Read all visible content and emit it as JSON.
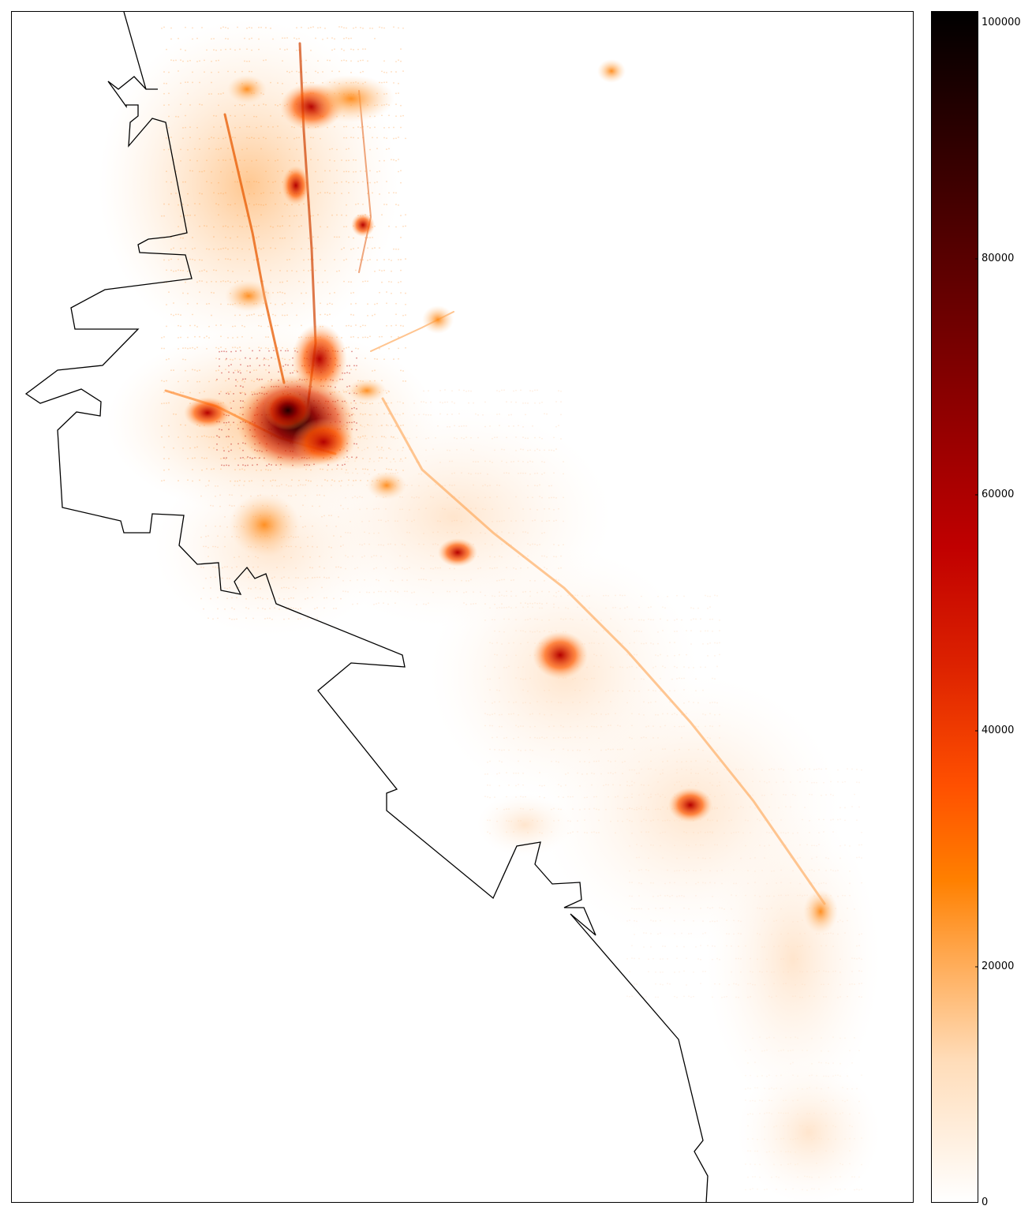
{
  "chart_data": {
    "type": "heatmap",
    "map_kind": "point-density scatter over coastline",
    "colormap": "gist_heat_r",
    "colors": {
      "low": "#ffffff",
      "mid_orange": "#ff7f00",
      "mid_red": "#c00000",
      "high": "#000000",
      "coastline": "#000000"
    },
    "colorbar": {
      "min": 0,
      "max": 101000,
      "ticks": [
        0,
        20000,
        40000,
        60000,
        80000,
        100000
      ],
      "tick_labels": [
        "0",
        "20000",
        "40000",
        "60000",
        "80000",
        "100000"
      ]
    },
    "axes_visible": false,
    "hotspots": [
      {
        "id": "downtown-core",
        "value": 100000
      },
      {
        "id": "downtown-east",
        "value": 70000
      },
      {
        "id": "north-corridor-1",
        "value": 60000
      },
      {
        "id": "north-corridor-2",
        "value": 55000
      },
      {
        "id": "north-cluster",
        "value": 45000
      },
      {
        "id": "west-cluster",
        "value": 60000
      },
      {
        "id": "southeast-node-1",
        "value": 55000
      },
      {
        "id": "southeast-node-2",
        "value": 50000
      },
      {
        "id": "southeast-node-3",
        "value": 35000
      },
      {
        "id": "southeast-node-4",
        "value": 28000
      },
      {
        "id": "northeast-isolated",
        "value": 25000
      }
    ]
  }
}
